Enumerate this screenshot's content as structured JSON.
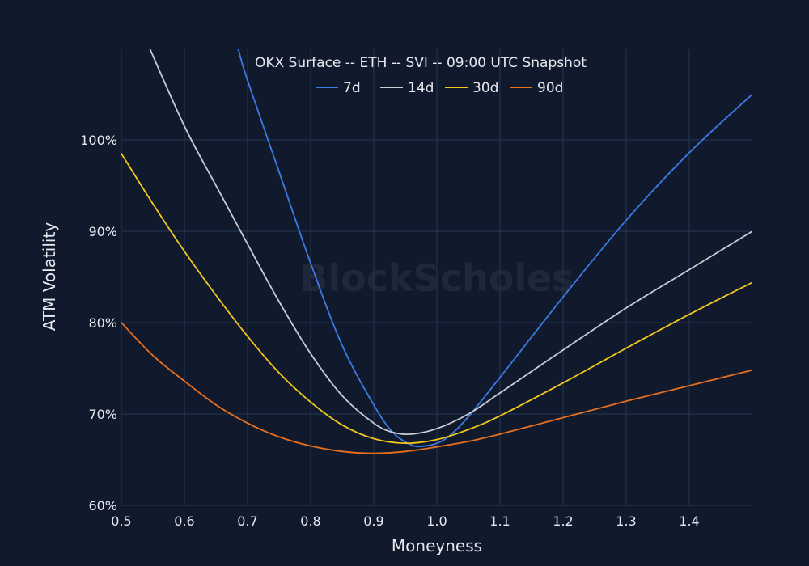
{
  "chart_data": {
    "type": "line",
    "title": "OKX Surface -- ETH -- SVI -- 09:00 UTC Snapshot",
    "xlabel": "Moneyness",
    "ylabel": "ATM Volatility",
    "watermark": "BlockScholes",
    "xlim": [
      0.5,
      1.5
    ],
    "ylim": [
      60,
      110
    ],
    "x_ticks": [
      0.5,
      0.6,
      0.7,
      0.8,
      0.9,
      1.0,
      1.1,
      1.2,
      1.3,
      1.4
    ],
    "x_tick_labels": [
      "0.5",
      "0.6",
      "0.7",
      "0.8",
      "0.9",
      "1.0",
      "1.1",
      "1.2",
      "1.3",
      "1.4"
    ],
    "y_ticks": [
      60,
      70,
      80,
      90,
      100
    ],
    "y_tick_labels": [
      "60%",
      "70%",
      "80%",
      "90%",
      "100%"
    ],
    "grid": true,
    "legend_position": "top-center",
    "series": [
      {
        "name": "7d",
        "color": "#3c7be6",
        "x": [
          0.685,
          0.7,
          0.75,
          0.8,
          0.85,
          0.9,
          0.93,
          0.96,
          0.98,
          1.0,
          1.02,
          1.05,
          1.1,
          1.2,
          1.3,
          1.4,
          1.5
        ],
        "y": [
          110,
          106.5,
          96.5,
          86.5,
          77.5,
          71.0,
          68.0,
          66.6,
          66.5,
          66.8,
          67.6,
          69.7,
          74.0,
          82.8,
          91.2,
          98.6,
          105.0
        ]
      },
      {
        "name": "14d",
        "color": "#c9ccd2",
        "x": [
          0.545,
          0.6,
          0.65,
          0.7,
          0.75,
          0.8,
          0.85,
          0.9,
          0.93,
          0.96,
          1.0,
          1.05,
          1.1,
          1.2,
          1.3,
          1.4,
          1.5
        ],
        "y": [
          110,
          101.5,
          95.0,
          88.6,
          82.3,
          76.6,
          72.0,
          69.0,
          68.0,
          67.8,
          68.4,
          70.0,
          72.3,
          77.0,
          81.6,
          85.8,
          90.0
        ]
      },
      {
        "name": "30d",
        "color": "#f2c81c",
        "x": [
          0.5,
          0.55,
          0.6,
          0.65,
          0.7,
          0.75,
          0.8,
          0.85,
          0.9,
          0.95,
          1.0,
          1.05,
          1.1,
          1.2,
          1.3,
          1.4,
          1.5
        ],
        "y": [
          98.5,
          93.0,
          87.8,
          83.0,
          78.5,
          74.5,
          71.3,
          68.8,
          67.3,
          66.8,
          67.2,
          68.3,
          69.8,
          73.4,
          77.2,
          80.9,
          84.4
        ]
      },
      {
        "name": "90d",
        "color": "#e8701f",
        "x": [
          0.5,
          0.55,
          0.6,
          0.65,
          0.7,
          0.75,
          0.8,
          0.85,
          0.9,
          0.95,
          1.0,
          1.05,
          1.1,
          1.2,
          1.3,
          1.4,
          1.5
        ],
        "y": [
          80.0,
          76.4,
          73.6,
          71.0,
          69.0,
          67.5,
          66.5,
          65.9,
          65.7,
          65.9,
          66.4,
          67.0,
          67.8,
          69.6,
          71.4,
          73.1,
          74.8
        ]
      }
    ]
  }
}
